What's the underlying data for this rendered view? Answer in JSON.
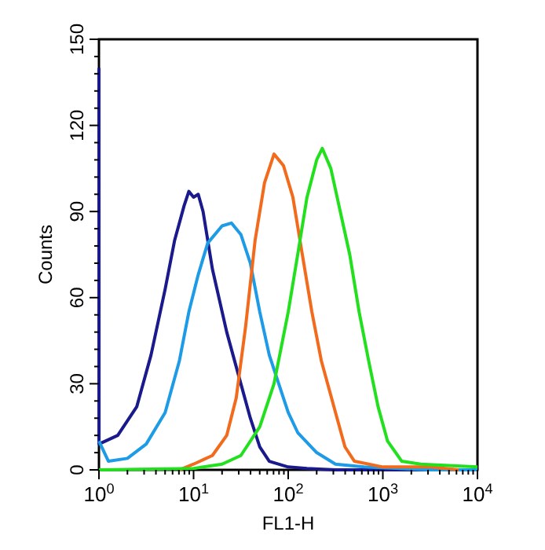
{
  "chart_data": {
    "type": "line",
    "xlabel": "FL1-H",
    "ylabel": "Counts",
    "log": "x",
    "xlim": [
      1,
      10000
    ],
    "ylim": [
      0,
      150
    ],
    "xticks": [
      {
        "value": 1,
        "label": "10$^{0}$"
      },
      {
        "value": 2,
        "label": null
      },
      {
        "value": 3,
        "label": null
      },
      {
        "value": 4,
        "label": null
      },
      {
        "value": 5,
        "label": null
      },
      {
        "value": 6,
        "label": null
      },
      {
        "value": 7,
        "label": null
      },
      {
        "value": 8,
        "label": null
      },
      {
        "value": 9,
        "label": null
      },
      {
        "value": 10,
        "label": "10$^{1}$"
      },
      {
        "value": 20,
        "label": null
      },
      {
        "value": 30,
        "label": null
      },
      {
        "value": 40,
        "label": null
      },
      {
        "value": 50,
        "label": null
      },
      {
        "value": 60,
        "label": null
      },
      {
        "value": 70,
        "label": null
      },
      {
        "value": 80,
        "label": null
      },
      {
        "value": 90,
        "label": null
      },
      {
        "value": 100,
        "label": "10$^{2}$"
      },
      {
        "value": 200,
        "label": null
      },
      {
        "value": 300,
        "label": null
      },
      {
        "value": 400,
        "label": null
      },
      {
        "value": 500,
        "label": null
      },
      {
        "value": 600,
        "label": null
      },
      {
        "value": 700,
        "label": null
      },
      {
        "value": 800,
        "label": null
      },
      {
        "value": 900,
        "label": null
      },
      {
        "value": 1000,
        "label": "10$^{3}$"
      },
      {
        "value": 2000,
        "label": null
      },
      {
        "value": 3000,
        "label": null
      },
      {
        "value": 4000,
        "label": null
      },
      {
        "value": 5000,
        "label": null
      },
      {
        "value": 6000,
        "label": null
      },
      {
        "value": 7000,
        "label": null
      },
      {
        "value": 8000,
        "label": null
      },
      {
        "value": 9000,
        "label": null
      },
      {
        "value": 10000,
        "label": "10$^{4}$"
      }
    ],
    "yticks": [
      0,
      {
        "value": 6,
        "label": null
      },
      {
        "value": 12,
        "label": null
      },
      {
        "value": 18,
        "label": null
      },
      {
        "value": 24,
        "label": null
      },
      30,
      {
        "value": 36,
        "label": null
      },
      {
        "value": 42,
        "label": null
      },
      {
        "value": 48,
        "label": null
      },
      {
        "value": 54,
        "label": null
      },
      60,
      {
        "value": 66,
        "label": null
      },
      {
        "value": 72,
        "label": null
      },
      {
        "value": 78,
        "label": null
      },
      {
        "value": 84,
        "label": null
      },
      90,
      {
        "value": 96,
        "label": null
      },
      {
        "value": 102,
        "label": null
      },
      {
        "value": 108,
        "label": null
      },
      {
        "value": 114,
        "label": null
      },
      120,
      {
        "value": 126,
        "label": null
      },
      {
        "value": 132,
        "label": null
      },
      {
        "value": 138,
        "label": null
      },
      {
        "value": 144,
        "label": null
      },
      150
    ],
    "series": [
      {
        "color": "#1a1a8c",
        "x": [
          1,
          1.002,
          1.58,
          2.51,
          3.55,
          5.01,
          6.31,
          7.94,
          8.91,
          10,
          11.2,
          12.6,
          15.8,
          22.4,
          31.6,
          39.8,
          50.1,
          63.1,
          100,
          158,
          316,
          10000
        ],
        "values": [
          140,
          9,
          12,
          22,
          40,
          63,
          80,
          92,
          97,
          95,
          96,
          90,
          70,
          48,
          30,
          18,
          8,
          3,
          1,
          0.5,
          0,
          0
        ]
      },
      {
        "color": "#1e9be6",
        "x": [
          1,
          1.26,
          2,
          3.16,
          5.01,
          7.08,
          8.91,
          11.2,
          14.1,
          20,
          25.1,
          31.6,
          39.8,
          50.1,
          63.1,
          79.4,
          100,
          126,
          200,
          316,
          631,
          3162,
          10000
        ],
        "values": [
          10,
          3,
          4,
          9,
          20,
          38,
          55,
          68,
          79,
          85,
          86,
          82,
          72,
          55,
          40,
          30,
          20,
          13,
          6,
          2,
          1,
          0,
          0
        ]
      },
      {
        "color": "#f26b1d",
        "x": [
          7.08,
          10,
          15.8,
          22.4,
          28.2,
          35.5,
          44.7,
          56.2,
          70.8,
          89.1,
          112,
          141,
          178,
          224,
          316,
          398,
          501,
          1000,
          3162,
          6310
        ],
        "values": [
          0,
          2,
          5,
          12,
          25,
          50,
          80,
          100,
          110,
          106,
          95,
          75,
          55,
          38,
          20,
          8,
          3,
          1,
          1,
          0
        ]
      },
      {
        "color": "#22e01e",
        "x": [
          1,
          10,
          20,
          31.6,
          50.1,
          70.8,
          100,
          126,
          158,
          200,
          229,
          282,
          355,
          447,
          562,
          708,
          891,
          1122,
          1585,
          2512,
          10000
        ],
        "values": [
          0,
          0.5,
          2,
          5,
          15,
          30,
          55,
          75,
          95,
          108,
          112,
          105,
          90,
          75,
          55,
          38,
          22,
          10,
          3,
          2,
          1
        ]
      }
    ]
  }
}
